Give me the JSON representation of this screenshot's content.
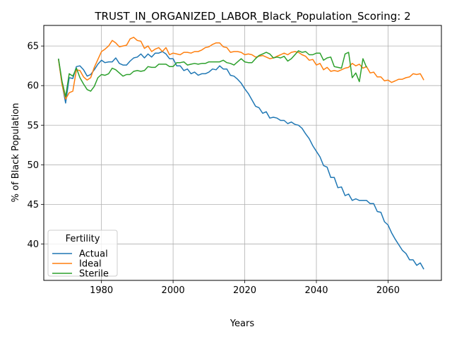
{
  "chart_data": {
    "type": "line",
    "title": "TRUST_IN_ORGANIZED_LABOR_Black_Population_Scoring: 2",
    "xlabel": "Years",
    "ylabel": "% of Black Population",
    "xlim": [
      1963.9,
      2074.9
    ],
    "ylim": [
      35.4,
      67.6
    ],
    "xticks": [
      1980,
      2000,
      2020,
      2040,
      2060
    ],
    "yticks": [
      40,
      45,
      50,
      55,
      60,
      65
    ],
    "grid": true,
    "legend": {
      "title": "Fertility",
      "location": "lower-left"
    },
    "x": [
      1968,
      1969,
      1970,
      1971,
      1972,
      1973,
      1974,
      1975,
      1976,
      1977,
      1978,
      1979,
      1980,
      1981,
      1982,
      1983,
      1984,
      1985,
      1986,
      1987,
      1988,
      1989,
      1990,
      1991,
      1992,
      1993,
      1994,
      1995,
      1996,
      1997,
      1998,
      1999,
      2000,
      2001,
      2002,
      2003,
      2004,
      2005,
      2006,
      2007,
      2008,
      2009,
      2010,
      2011,
      2012,
      2013,
      2014,
      2015,
      2016,
      2017,
      2018,
      2019,
      2020,
      2021,
      2022,
      2023,
      2024,
      2025,
      2026,
      2027,
      2028,
      2029,
      2030,
      2031,
      2032,
      2033,
      2034,
      2035,
      2036,
      2037,
      2038,
      2039,
      2040,
      2041,
      2042,
      2043,
      2044,
      2045,
      2046,
      2047,
      2048,
      2049,
      2050,
      2051,
      2052,
      2053,
      2054,
      2055,
      2056,
      2057,
      2058,
      2059,
      2060,
      2061,
      2062,
      2063,
      2064,
      2065,
      2066,
      2067,
      2068,
      2069,
      2070
    ],
    "series": [
      {
        "name": "Actual",
        "color": "#1f77b4",
        "values": [
          63.4,
          60.2,
          57.8,
          61.0,
          60.9,
          62.4,
          62.5,
          62.0,
          61.2,
          61.4,
          62.0,
          62.7,
          63.2,
          62.9,
          63.0,
          63.0,
          63.5,
          62.8,
          62.6,
          62.6,
          63.1,
          63.5,
          63.6,
          64.0,
          63.5,
          64.0,
          63.6,
          64.1,
          64.1,
          64.3,
          64.0,
          63.4,
          63.4,
          62.5,
          62.5,
          61.9,
          62.1,
          61.5,
          61.7,
          61.3,
          61.5,
          61.5,
          61.7,
          62.1,
          62.0,
          62.5,
          62.1,
          62.1,
          61.3,
          61.2,
          60.8,
          60.3,
          59.6,
          59.0,
          58.2,
          57.4,
          57.2,
          56.5,
          56.7,
          55.9,
          56.0,
          55.9,
          55.6,
          55.6,
          55.2,
          55.4,
          55.1,
          55.0,
          54.6,
          53.9,
          53.3,
          52.4,
          51.7,
          51.0,
          49.9,
          49.7,
          48.4,
          48.4,
          47.1,
          47.2,
          46.1,
          46.3,
          45.5,
          45.7,
          45.5,
          45.5,
          45.5,
          45.1,
          45.1,
          44.1,
          44.0,
          42.8,
          42.4,
          41.4,
          40.6,
          39.9,
          39.2,
          38.8,
          38.0,
          38.0,
          37.3,
          37.6,
          36.8
        ]
      },
      {
        "name": "Ideal",
        "color": "#ff7f0e",
        "values": [
          63.3,
          60.1,
          58.3,
          59.1,
          59.3,
          62.0,
          61.9,
          61.1,
          60.7,
          61.0,
          62.3,
          63.3,
          64.3,
          64.6,
          65.0,
          65.7,
          65.4,
          64.9,
          65.0,
          65.1,
          65.9,
          66.1,
          65.7,
          65.6,
          64.7,
          65.0,
          64.3,
          64.6,
          64.8,
          64.3,
          64.8,
          63.9,
          64.1,
          64.0,
          63.9,
          64.2,
          64.2,
          64.1,
          64.3,
          64.3,
          64.5,
          64.8,
          64.9,
          65.2,
          65.4,
          65.4,
          64.9,
          64.8,
          64.2,
          64.3,
          64.3,
          64.2,
          63.9,
          64.0,
          63.9,
          63.6,
          63.7,
          63.8,
          63.6,
          63.4,
          63.5,
          63.7,
          63.9,
          64.1,
          63.9,
          64.2,
          64.3,
          64.2,
          63.9,
          63.7,
          63.2,
          63.3,
          62.6,
          62.8,
          62.0,
          62.3,
          61.8,
          61.9,
          61.8,
          62.0,
          62.2,
          62.3,
          62.8,
          62.5,
          62.7,
          62.2,
          62.4,
          61.6,
          61.7,
          61.1,
          61.1,
          60.6,
          60.7,
          60.4,
          60.6,
          60.8,
          60.8,
          61.0,
          61.1,
          61.5,
          61.4,
          61.5,
          60.7
        ]
      },
      {
        "name": "Sterile",
        "color": "#2ca02c",
        "values": [
          63.4,
          60.5,
          58.6,
          61.5,
          61.2,
          62.2,
          61.0,
          60.2,
          59.5,
          59.3,
          59.9,
          61.0,
          61.4,
          61.3,
          61.5,
          62.2,
          62.0,
          61.6,
          61.2,
          61.4,
          61.4,
          61.8,
          61.9,
          61.8,
          61.9,
          62.4,
          62.3,
          62.3,
          62.7,
          62.7,
          62.7,
          62.4,
          62.4,
          62.9,
          62.9,
          63.0,
          62.6,
          62.7,
          62.8,
          62.7,
          62.8,
          62.8,
          63.0,
          63.0,
          63.0,
          63.0,
          63.2,
          62.9,
          62.8,
          62.6,
          63.0,
          63.4,
          63.0,
          62.9,
          62.9,
          63.4,
          63.8,
          64.0,
          64.2,
          64.0,
          63.5,
          63.6,
          63.5,
          63.7,
          63.1,
          63.4,
          63.9,
          64.4,
          64.2,
          64.3,
          63.9,
          63.9,
          64.1,
          64.1,
          63.2,
          63.5,
          63.6,
          62.4,
          62.3,
          62.2,
          64.0,
          64.2,
          61.0,
          61.6,
          60.5,
          63.4,
          62.3,
          null,
          null,
          null,
          null,
          null,
          null,
          null,
          null,
          null,
          null,
          null,
          null,
          null,
          null,
          null,
          null
        ]
      }
    ]
  }
}
